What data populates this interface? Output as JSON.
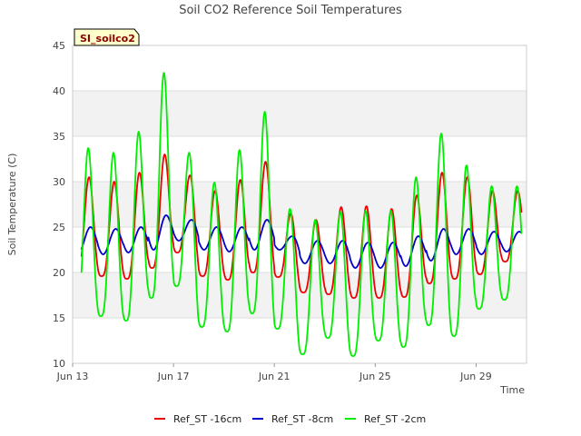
{
  "chart_data": {
    "type": "line",
    "title": "Soil CO2 Reference Soil Temperatures",
    "xlabel": "Time",
    "ylabel": "Soil Temperature (C)",
    "site_badge": "SI_soilco2",
    "ylim": [
      10,
      45
    ],
    "xlim": [
      13,
      31
    ],
    "y_ticks": [
      10,
      15,
      20,
      25,
      30,
      35,
      40,
      45
    ],
    "x_ticks": [
      {
        "value": 13,
        "label": "Jun 13"
      },
      {
        "value": 17,
        "label": "Jun 17"
      },
      {
        "value": 21,
        "label": "Jun 21"
      },
      {
        "value": 25,
        "label": "Jun 25"
      },
      {
        "value": 29,
        "label": "Jun 29"
      }
    ],
    "grid": true,
    "legend_position": "bottom",
    "series": [
      {
        "name": "Ref_ST -16cm",
        "color": "#ee0000",
        "daily_min": [
          19.8,
          19.6,
          19.3,
          20.5,
          22.2,
          19.6,
          19.2,
          20.0,
          19.5,
          17.8,
          17.6,
          17.2,
          17.2,
          17.3,
          18.8,
          19.3,
          19.8,
          21.2
        ],
        "daily_max": [
          30.5,
          30.0,
          31.0,
          33.0,
          30.7,
          29.0,
          30.2,
          32.2,
          26.5,
          25.8,
          27.2,
          27.3,
          27.0,
          28.5,
          31.0,
          30.5,
          29.0,
          29.0
        ]
      },
      {
        "name": "Ref_ST -8cm",
        "color": "#0000cc",
        "daily_min": [
          22.0,
          22.0,
          22.2,
          22.5,
          23.5,
          22.5,
          22.3,
          22.5,
          22.5,
          21.0,
          21.0,
          20.5,
          20.5,
          20.7,
          21.3,
          22.0,
          22.0,
          22.3
        ],
        "daily_max": [
          25.0,
          24.8,
          25.0,
          26.3,
          25.8,
          25.0,
          25.0,
          25.8,
          24.0,
          23.5,
          23.5,
          23.3,
          23.3,
          24.0,
          24.8,
          24.8,
          24.5,
          24.5
        ]
      },
      {
        "name": "Ref_ST -2cm",
        "color": "#00ee00",
        "daily_min": [
          15.0,
          15.2,
          14.7,
          17.2,
          18.5,
          14.0,
          13.5,
          15.5,
          13.8,
          11.0,
          12.8,
          10.8,
          12.5,
          11.8,
          14.2,
          13.0,
          16.0,
          17.0
        ],
        "daily_max": [
          33.7,
          33.2,
          35.5,
          42.0,
          33.2,
          29.9,
          33.5,
          37.7,
          27.0,
          25.8,
          26.7,
          26.8,
          26.8,
          30.5,
          35.3,
          31.8,
          29.5,
          29.5
        ]
      }
    ]
  }
}
